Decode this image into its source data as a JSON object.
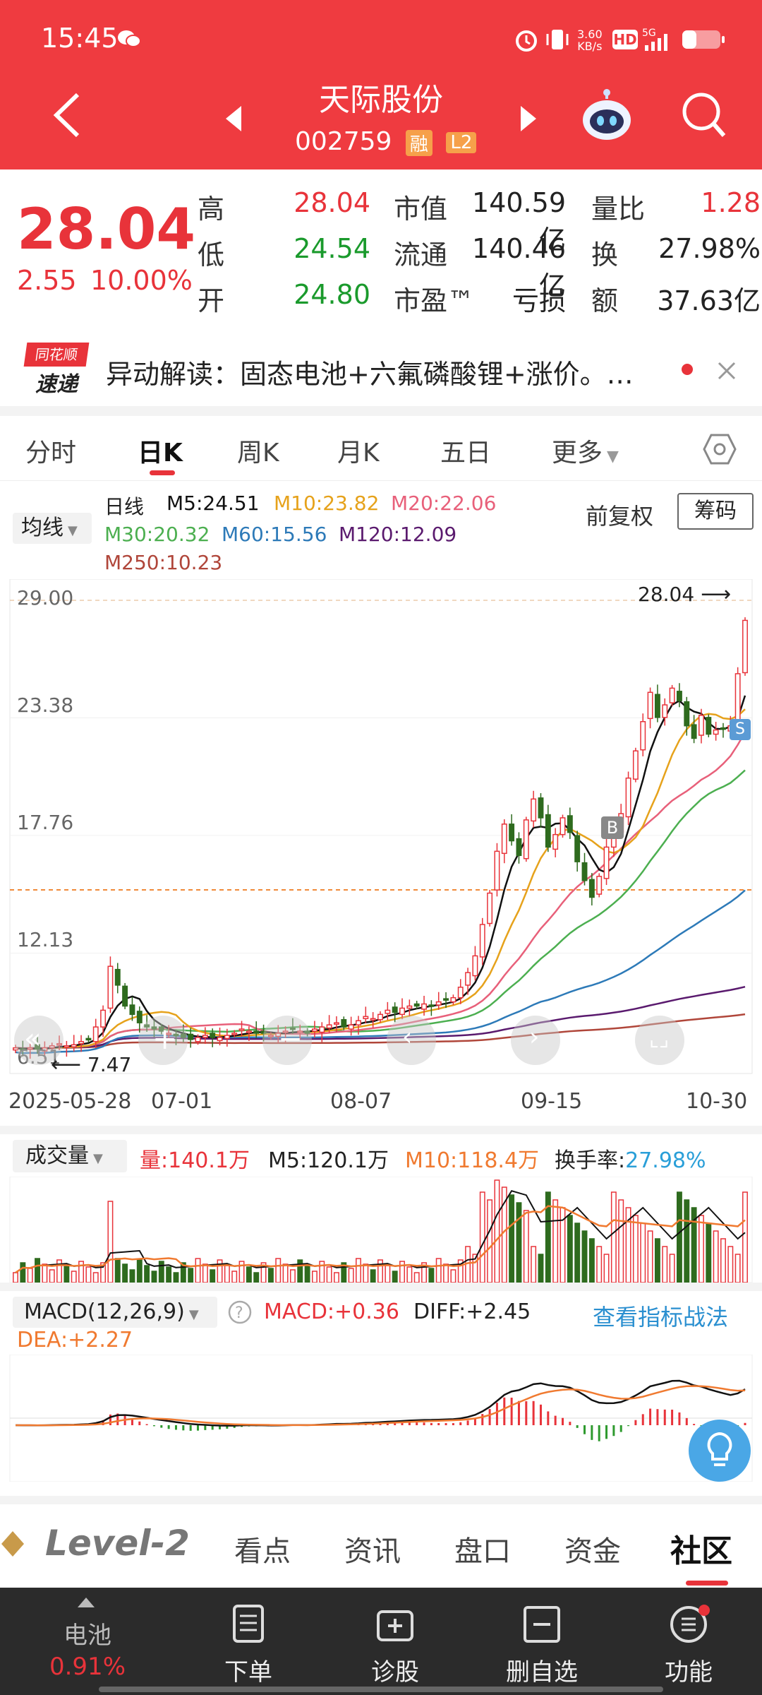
{
  "status": {
    "time": "15:45",
    "net_speed": "3.60\nKB/s",
    "net_speed_top": "3.60",
    "net_speed_bottom": "KB/s"
  },
  "header": {
    "title": "天际股份",
    "code": "002759",
    "tag_margin": "融",
    "tag_level": "L2"
  },
  "quote": {
    "price": "28.04",
    "change": "2.55",
    "change_pct": "10.00%",
    "high_label": "高",
    "high": "28.04",
    "low_label": "低",
    "low": "24.54",
    "open_label": "开",
    "open": "24.80",
    "mktcap_label": "市值",
    "mktcap": "140.59亿",
    "float_label": "流通",
    "float": "140.46亿",
    "pe_label": "市盈™",
    "pe": "亏损",
    "vol_ratio_label": "量比",
    "vol_ratio": "1.28",
    "turnover_label": "换",
    "turnover": "27.98%",
    "amount_label": "额",
    "amount": "37.63亿"
  },
  "news": {
    "brand_top": "同花顺",
    "brand_bottom": "速递",
    "text": "异动解读：固态电池+六氟磷酸锂+涨价。…"
  },
  "tabs": [
    "分时",
    "日K",
    "周K",
    "月K",
    "五日",
    "更多"
  ],
  "active_tab": "日K",
  "ma_legend": {
    "indicator_select": "均线",
    "period": "日线",
    "m5": "M5:24.51",
    "m10": "M10:23.82",
    "m20": "M20:22.06",
    "m30": "M30:20.32",
    "m60": "M60:15.56",
    "m120": "M120:12.09",
    "m250": "M250:10.23",
    "adjust": "前复权",
    "chips": "筹码"
  },
  "price_axis": [
    "29.00",
    "23.38",
    "17.76",
    "12.13",
    "6.51"
  ],
  "max_marker": "28.04",
  "min_marker": "7.47",
  "date_axis": [
    "2025-05-28",
    "07-01",
    "08-07",
    "09-15",
    "10-30"
  ],
  "volume_legend": {
    "select": "成交量",
    "vol": "量:140.1万",
    "m5": "M5:120.1万",
    "m10": "M10:118.4万",
    "turnover_label": "换手率:",
    "turnover": "27.98%"
  },
  "macd_legend": {
    "select": "MACD(12,26,9)",
    "macd": "MACD:+0.36",
    "diff": "DIFF:+2.45",
    "dea": "DEA:+2.27",
    "link": "查看指标战法"
  },
  "bottom_tabs": [
    "Level-2",
    "看点",
    "资讯",
    "盘口",
    "资金",
    "社区"
  ],
  "toolbar": {
    "battery_label": "电池",
    "battery_value": "0.91%",
    "order": "下单",
    "diagnose": "诊股",
    "remove_watch": "删自选",
    "function": "功能"
  },
  "colors": {
    "up": "#e8333a",
    "down": "#2e6b1e",
    "header": "#ef3b40"
  },
  "chart_data": {
    "type": "candlestick",
    "x_start": "2025-05-28",
    "x_end": "2025-10-30",
    "ylim": [
      6.51,
      29.0
    ],
    "closes": [
      7.6,
      7.5,
      7.6,
      7.55,
      7.6,
      7.7,
      7.8,
      7.7,
      7.75,
      7.9,
      8.0,
      8.6,
      9.4,
      11.5,
      10.6,
      9.6,
      9.2,
      8.8,
      8.6,
      8.5,
      8.4,
      8.3,
      8.2,
      8.1,
      8.0,
      8.1,
      8.2,
      8.1,
      8.1,
      8.2,
      8.3,
      8.5,
      8.4,
      8.3,
      8.3,
      8.2,
      8.3,
      8.4,
      8.5,
      8.4,
      8.3,
      8.5,
      8.6,
      8.7,
      8.8,
      8.6,
      8.7,
      8.9,
      9.1,
      9.0,
      9.2,
      9.4,
      9.3,
      9.5,
      9.6,
      9.6,
      9.7,
      9.6,
      9.8,
      9.9,
      10.0,
      10.5,
      11.2,
      12.0,
      13.5,
      15.0,
      17.0,
      18.3,
      17.5,
      16.8,
      18.5,
      19.5,
      18.6,
      17.2,
      17.8,
      18.6,
      17.9,
      16.5,
      15.6,
      14.8,
      15.8,
      17.2,
      17.8,
      18.8,
      20.5,
      21.8,
      23.2,
      24.6,
      23.4,
      24.0,
      24.8,
      24.2,
      23.0,
      22.4,
      23.5,
      22.6,
      22.8,
      22.9,
      23.0,
      25.49,
      28.04
    ],
    "ma": {
      "m5": 24.51,
      "m10": 23.82,
      "m20": 22.06,
      "m30": 20.32,
      "m60": 15.56,
      "m120": 12.09,
      "m250": 10.23
    }
  }
}
